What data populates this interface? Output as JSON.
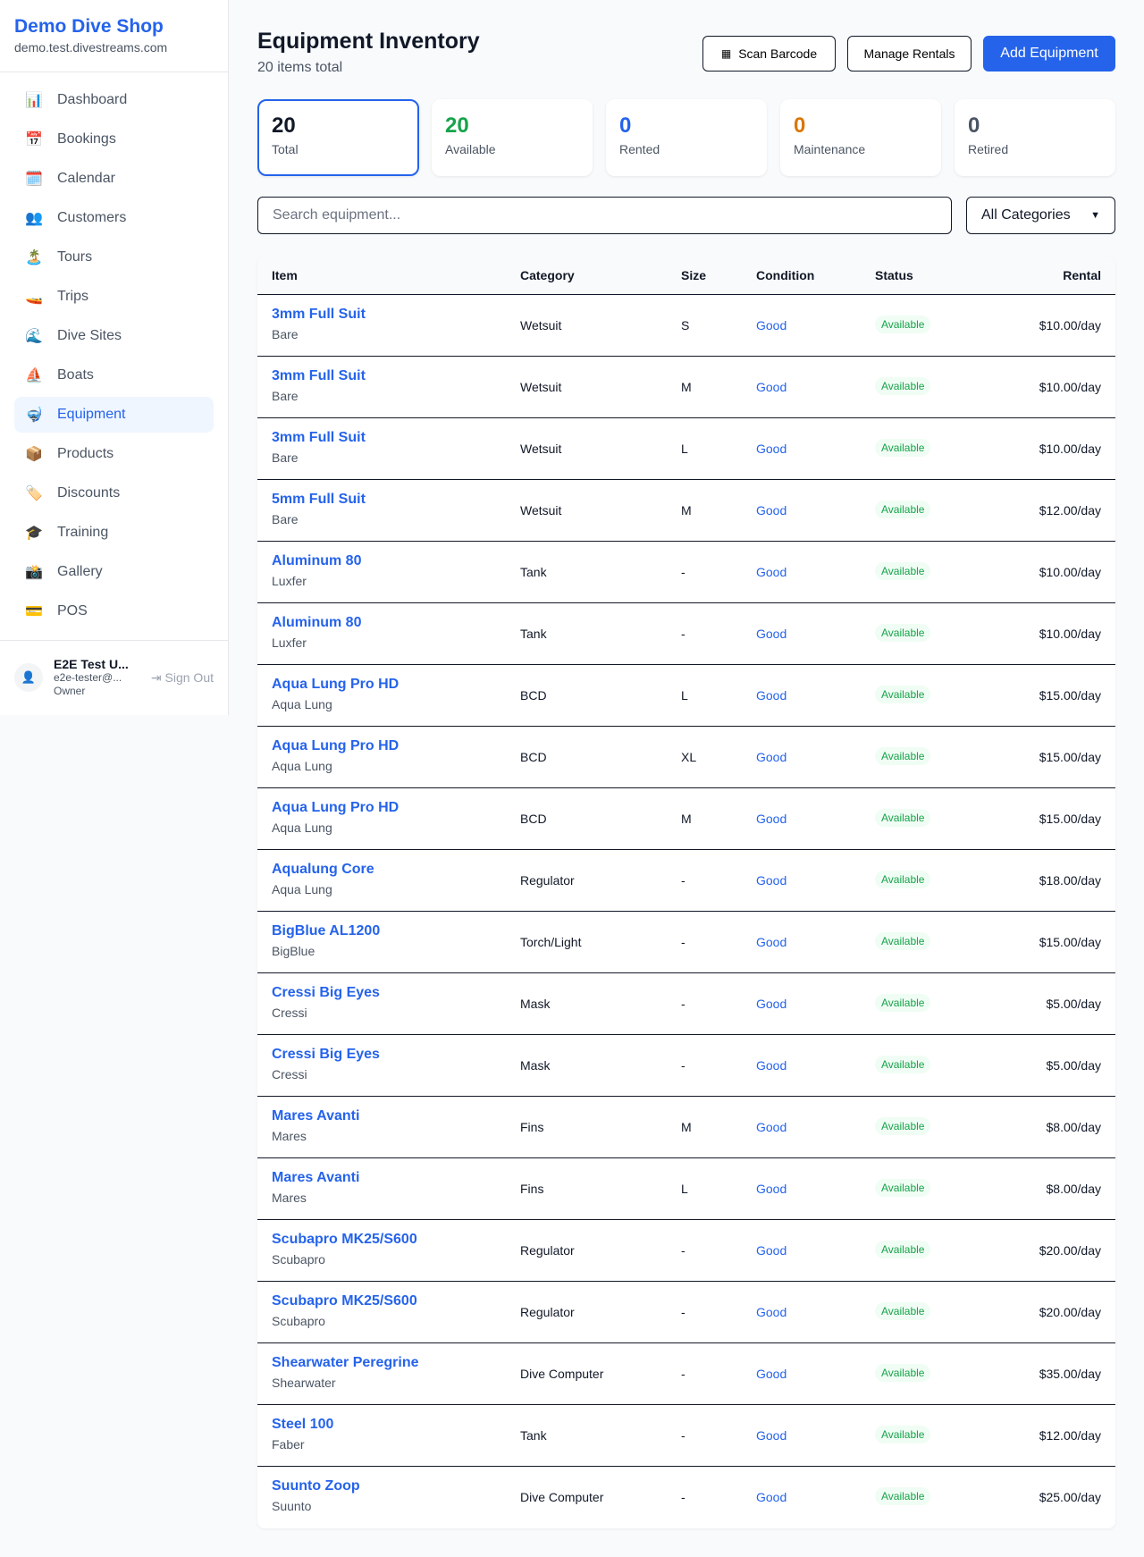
{
  "sidebar": {
    "brand": "Demo Dive Shop",
    "domain": "demo.test.divestreams.com",
    "items": [
      {
        "label": "Dashboard",
        "icon": "📊"
      },
      {
        "label": "Bookings",
        "icon": "📅"
      },
      {
        "label": "Calendar",
        "icon": "🗓️"
      },
      {
        "label": "Customers",
        "icon": "👥"
      },
      {
        "label": "Tours",
        "icon": "🏝️"
      },
      {
        "label": "Trips",
        "icon": "🚤"
      },
      {
        "label": "Dive Sites",
        "icon": "🌊"
      },
      {
        "label": "Boats",
        "icon": "⛵"
      },
      {
        "label": "Equipment",
        "icon": "🤿",
        "active": true
      },
      {
        "label": "Products",
        "icon": "📦"
      },
      {
        "label": "Discounts",
        "icon": "🏷️"
      },
      {
        "label": "Training",
        "icon": "🎓"
      },
      {
        "label": "Gallery",
        "icon": "📸"
      },
      {
        "label": "POS",
        "icon": "💳"
      }
    ],
    "user": {
      "name": "E2E Test U...",
      "email": "e2e-tester@...",
      "role": "Owner",
      "sign_out": "Sign Out"
    }
  },
  "header": {
    "title": "Equipment Inventory",
    "subtitle": "20 items total",
    "scan": "Scan Barcode",
    "manage": "Manage Rentals",
    "add": "Add Equipment"
  },
  "stats": [
    {
      "value": "20",
      "label": "Total",
      "color": "#111827"
    },
    {
      "value": "20",
      "label": "Available",
      "color": "#16a34a"
    },
    {
      "value": "0",
      "label": "Rented",
      "color": "#2563eb"
    },
    {
      "value": "0",
      "label": "Maintenance",
      "color": "#d97706"
    },
    {
      "value": "0",
      "label": "Retired",
      "color": "#4b5563"
    }
  ],
  "filters": {
    "search_placeholder": "Search equipment...",
    "category": "All Categories"
  },
  "table": {
    "columns": [
      "Item",
      "Category",
      "Size",
      "Condition",
      "Status",
      "Rental"
    ],
    "rows": [
      [
        "3mm Full Suit",
        "Bare",
        "Wetsuit",
        "S",
        "Good",
        "Available",
        "$10.00/day"
      ],
      [
        "3mm Full Suit",
        "Bare",
        "Wetsuit",
        "M",
        "Good",
        "Available",
        "$10.00/day"
      ],
      [
        "3mm Full Suit",
        "Bare",
        "Wetsuit",
        "L",
        "Good",
        "Available",
        "$10.00/day"
      ],
      [
        "5mm Full Suit",
        "Bare",
        "Wetsuit",
        "M",
        "Good",
        "Available",
        "$12.00/day"
      ],
      [
        "Aluminum 80",
        "Luxfer",
        "Tank",
        "-",
        "Good",
        "Available",
        "$10.00/day"
      ],
      [
        "Aluminum 80",
        "Luxfer",
        "Tank",
        "-",
        "Good",
        "Available",
        "$10.00/day"
      ],
      [
        "Aqua Lung Pro HD",
        "Aqua Lung",
        "BCD",
        "L",
        "Good",
        "Available",
        "$15.00/day"
      ],
      [
        "Aqua Lung Pro HD",
        "Aqua Lung",
        "BCD",
        "XL",
        "Good",
        "Available",
        "$15.00/day"
      ],
      [
        "Aqua Lung Pro HD",
        "Aqua Lung",
        "BCD",
        "M",
        "Good",
        "Available",
        "$15.00/day"
      ],
      [
        "Aqualung Core",
        "Aqua Lung",
        "Regulator",
        "-",
        "Good",
        "Available",
        "$18.00/day"
      ],
      [
        "BigBlue AL1200",
        "BigBlue",
        "Torch/Light",
        "-",
        "Good",
        "Available",
        "$15.00/day"
      ],
      [
        "Cressi Big Eyes",
        "Cressi",
        "Mask",
        "-",
        "Good",
        "Available",
        "$5.00/day"
      ],
      [
        "Cressi Big Eyes",
        "Cressi",
        "Mask",
        "-",
        "Good",
        "Available",
        "$5.00/day"
      ],
      [
        "Mares Avanti",
        "Mares",
        "Fins",
        "M",
        "Good",
        "Available",
        "$8.00/day"
      ],
      [
        "Mares Avanti",
        "Mares",
        "Fins",
        "L",
        "Good",
        "Available",
        "$8.00/day"
      ],
      [
        "Scubapro MK25/S600",
        "Scubapro",
        "Regulator",
        "-",
        "Good",
        "Available",
        "$20.00/day"
      ],
      [
        "Scubapro MK25/S600",
        "Scubapro",
        "Regulator",
        "-",
        "Good",
        "Available",
        "$20.00/day"
      ],
      [
        "Shearwater Peregrine",
        "Shearwater",
        "Dive Computer",
        "-",
        "Good",
        "Available",
        "$35.00/day"
      ],
      [
        "Steel 100",
        "Faber",
        "Tank",
        "-",
        "Good",
        "Available",
        "$12.00/day"
      ],
      [
        "Suunto Zoop",
        "Suunto",
        "Dive Computer",
        "-",
        "Good",
        "Available",
        "$25.00/day"
      ]
    ]
  }
}
